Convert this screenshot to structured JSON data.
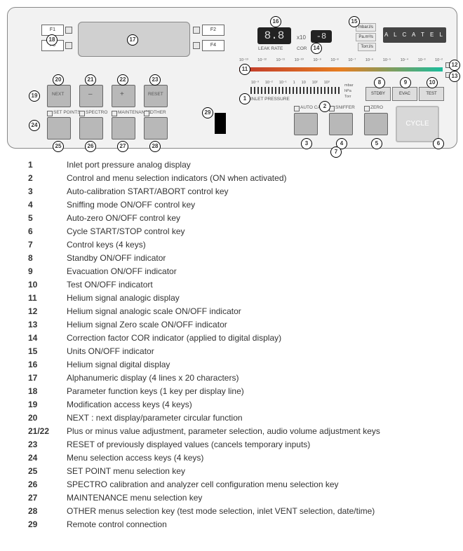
{
  "brand": "A L C A T E L",
  "fkeys": {
    "f1": "F1",
    "f2": "F2",
    "f3": "F3",
    "f4": "F4"
  },
  "mod_keys": {
    "next": "NEXT",
    "minus": "–",
    "plus": "+",
    "reset": "RESET"
  },
  "menu_keys": {
    "setpoints": "SET POINTS",
    "spectro": "SPECTRO",
    "maintenance": "MAINTENANCE",
    "other": "OTHER"
  },
  "leak_display": {
    "value": "8.8",
    "cor": "COR",
    "label": "LEAK RATE",
    "xpow": "x10",
    "exp": "-8"
  },
  "units": {
    "u1": "mbar.l/s",
    "u2": "Pa.m³/s",
    "u3": "Torr.l/s"
  },
  "scale_ticks": [
    "10⁻¹³",
    "10⁻¹²",
    "10⁻¹¹",
    "10⁻¹⁰",
    "10⁻⁹",
    "10⁻⁸",
    "10⁻⁷",
    "10⁻⁶",
    "10⁻⁵",
    "10⁻⁴",
    "10⁻³",
    "10⁻²"
  ],
  "inlet": {
    "label": "INLET PRESSURE",
    "unit1": "mbar",
    "unit2": "hPa",
    "unit3": "Torr",
    "t1": "10⁻³",
    "t2": "10⁻²",
    "t3": "10⁻¹",
    "t4": "1",
    "t5": "10",
    "t6": "10²",
    "t7": "10³"
  },
  "modes": {
    "stdby": "STDBY",
    "evac": "EVAC",
    "test": "TEST"
  },
  "ctrl": {
    "autocal": "AUTO CAL",
    "sniffer": "SNIFFER",
    "zero": "ZERO",
    "cycle": "CYCLE"
  },
  "callouts": {
    "1": "1",
    "2": "2",
    "3": "3",
    "4": "4",
    "5": "5",
    "6": "6",
    "7": "7",
    "8": "8",
    "9": "9",
    "10": "10",
    "11": "11",
    "12": "12",
    "13": "13",
    "14": "14",
    "15": "15",
    "16": "16",
    "17": "17",
    "18": "18",
    "19": "19",
    "20": "20",
    "21": "21",
    "22": "22",
    "23": "23",
    "24": "24",
    "25": "25",
    "26": "26",
    "27": "27",
    "28": "28",
    "29": "29"
  },
  "legend": [
    {
      "n": "1",
      "t": "Inlet port pressure analog display"
    },
    {
      "n": "2",
      "t": "Control and menu selection indicators (ON when activated)"
    },
    {
      "n": "3",
      "t": "Auto-calibration START/ABORT control key"
    },
    {
      "n": "4",
      "t": "Sniffing mode ON/OFF control key"
    },
    {
      "n": "5",
      "t": "Auto-zero ON/OFF control key"
    },
    {
      "n": "6",
      "t": "Cycle START/STOP control key"
    },
    {
      "n": "7",
      "t": "Control keys (4 keys)"
    },
    {
      "n": "8",
      "t": "Standby ON/OFF indicator"
    },
    {
      "n": "9",
      "t": "Evacuation ON/OFF indicator"
    },
    {
      "n": "10",
      "t": "Test ON/OFF indicatort"
    },
    {
      "n": "11",
      "t": "Helium signal analogic display"
    },
    {
      "n": "12",
      "t": "Helium signal analogic scale ON/OFF indicator"
    },
    {
      "n": "13",
      "t": "Helium signal Zero scale ON/OFF indicator"
    },
    {
      "n": "14",
      "t": "Correction factor COR indicator (applied to digital display)"
    },
    {
      "n": "15",
      "t": "Units ON/OFF indicator"
    },
    {
      "n": "16",
      "t": "Helium signal digital display"
    },
    {
      "n": "17",
      "t": "Alphanumeric display (4 lines x 20 characters)"
    },
    {
      "n": "18",
      "t": "Parameter function keys (1 key per display line)"
    },
    {
      "n": "19",
      "t": "Modification access keys (4 keys)"
    },
    {
      "n": "20",
      "t": "NEXT : next display/parameter circular function"
    },
    {
      "n": "21/22",
      "t": "Plus or minus value adjustment, parameter selection, audio volume adjustment keys"
    },
    {
      "n": "23",
      "t": "RESET of previously displayed values (cancels temporary inputs)"
    },
    {
      "n": "24",
      "t": "Menu selection access keys (4 keys)"
    },
    {
      "n": "25",
      "t": "SET POINT menu selection key"
    },
    {
      "n": "26",
      "t": "SPECTRO calibration and analyzer cell configuration menu selection key"
    },
    {
      "n": "27",
      "t": "MAINTENANCE menu selection key"
    },
    {
      "n": "28",
      "t": "OTHER menus selection key (test mode selection, inlet VENT selection, date/time)"
    },
    {
      "n": "29",
      "t": "Remote control connection"
    }
  ],
  "colors": {
    "panel_bg": "#f2f2f2",
    "scale_gradient": [
      "#c0392b",
      "#e67e22",
      "#1abc9c"
    ],
    "led_bg": "#222222"
  }
}
